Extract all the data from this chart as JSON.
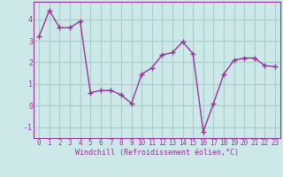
{
  "x": [
    0,
    1,
    2,
    3,
    4,
    5,
    6,
    7,
    8,
    9,
    10,
    11,
    12,
    13,
    14,
    15,
    16,
    17,
    18,
    19,
    20,
    21,
    22,
    23
  ],
  "y": [
    3.2,
    4.4,
    3.6,
    3.6,
    3.9,
    0.6,
    0.7,
    0.7,
    0.5,
    0.1,
    1.45,
    1.75,
    2.35,
    2.45,
    2.95,
    2.4,
    -1.2,
    0.1,
    1.45,
    2.1,
    2.2,
    2.2,
    1.85,
    1.8
  ],
  "line_color": "#993399",
  "marker": "+",
  "marker_size": 4,
  "linewidth": 1.0,
  "bg_color": "#cce8e8",
  "grid_color": "#aacccc",
  "xlabel": "Windchill (Refroidissement éolien,°C)",
  "xlabel_color": "#993399",
  "tick_color": "#993399",
  "label_color": "#993399",
  "ylim": [
    -1.5,
    4.8
  ],
  "xlim": [
    -0.5,
    23.5
  ],
  "yticks": [
    -1,
    0,
    1,
    2,
    3,
    4
  ],
  "xticks": [
    0,
    1,
    2,
    3,
    4,
    5,
    6,
    7,
    8,
    9,
    10,
    11,
    12,
    13,
    14,
    15,
    16,
    17,
    18,
    19,
    20,
    21,
    22,
    23
  ],
  "xtick_labels": [
    "0",
    "1",
    "2",
    "3",
    "4",
    "5",
    "6",
    "7",
    "8",
    "9",
    "10",
    "11",
    "12",
    "13",
    "14",
    "15",
    "16",
    "17",
    "18",
    "19",
    "20",
    "21",
    "22",
    "23"
  ],
  "tick_fontsize": 5.5,
  "xlabel_fontsize": 6.0
}
